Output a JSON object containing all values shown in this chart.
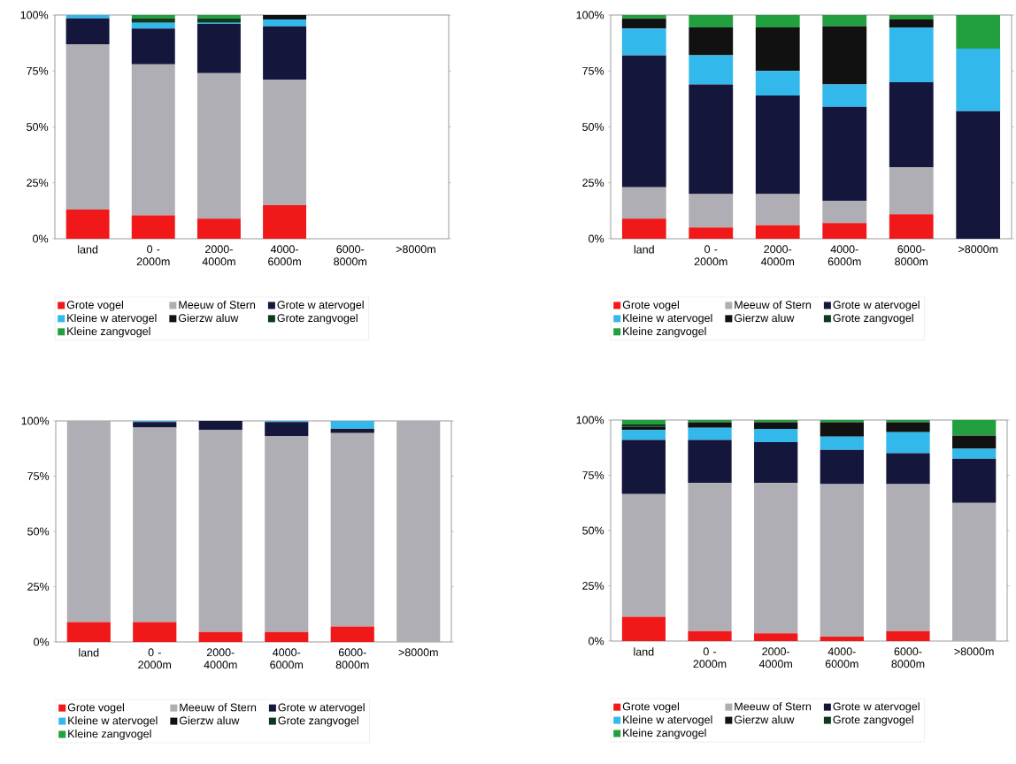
{
  "chart_data": [
    {
      "type": "bar",
      "stacked": true,
      "legend": "bottom",
      "ylim": [
        0,
        100
      ],
      "yticks": [
        {
          "value": 0,
          "label": "0%"
        },
        {
          "value": 25,
          "label": "25%"
        },
        {
          "value": 50,
          "label": "50%"
        },
        {
          "value": 75,
          "label": "75%"
        },
        {
          "value": 100,
          "label": "100%"
        }
      ],
      "categories": [
        "land",
        "0 - 2000m",
        "2000-4000m",
        "4000-6000m",
        "6000-8000m",
        ">8000m"
      ],
      "series": [
        {
          "name": "Grote vogel",
          "color": "#f01818",
          "values": [
            13,
            10.5,
            9,
            15,
            null,
            null
          ]
        },
        {
          "name": "Meeuw  of Stern",
          "color": "#aeaeb4",
          "values": [
            74,
            67.5,
            65,
            56,
            null,
            null
          ]
        },
        {
          "name": "Grote w atervogel",
          "color": "#15163c",
          "values": [
            11.5,
            16,
            22,
            24,
            null,
            null
          ]
        },
        {
          "name": "Kleine w atervogel",
          "color": "#33b8ec",
          "values": [
            1.5,
            2.5,
            0.5,
            3,
            null,
            null
          ]
        },
        {
          "name": "Gierzw aluw",
          "color": "#111111",
          "values": [
            0,
            0,
            0,
            2,
            null,
            null
          ]
        },
        {
          "name": "Grote zangvogel",
          "color": "#0c3a1c",
          "values": [
            0,
            2,
            2,
            0,
            null,
            null
          ]
        },
        {
          "name": "Kleine zangvogel",
          "color": "#22a040",
          "values": [
            0,
            1.5,
            1.5,
            0,
            null,
            null
          ]
        }
      ]
    },
    {
      "type": "bar",
      "stacked": true,
      "legend": "bottom",
      "ylim": [
        0,
        100
      ],
      "yticks": [
        {
          "value": 0,
          "label": "0%"
        },
        {
          "value": 25,
          "label": "25%"
        },
        {
          "value": 50,
          "label": "50%"
        },
        {
          "value": 75,
          "label": "75%"
        },
        {
          "value": 100,
          "label": "100%"
        }
      ],
      "categories": [
        "land",
        "0 - 2000m",
        "2000-4000m",
        "4000-6000m",
        "6000-8000m",
        ">8000m"
      ],
      "series": [
        {
          "name": "Grote vogel",
          "color": "#f01818",
          "values": [
            9,
            5,
            6,
            7,
            11,
            0
          ]
        },
        {
          "name": "Meeuw  of Stern",
          "color": "#aeaeb4",
          "values": [
            14,
            15,
            14,
            10,
            21,
            0
          ]
        },
        {
          "name": "Grote w atervogel",
          "color": "#15163c",
          "values": [
            59,
            49,
            44,
            42,
            38,
            57
          ]
        },
        {
          "name": "Kleine w atervogel",
          "color": "#33b8ec",
          "values": [
            12,
            13,
            11,
            10,
            24.5,
            28
          ]
        },
        {
          "name": "Gierzw aluw",
          "color": "#111111",
          "values": [
            4,
            12.5,
            19.5,
            26,
            3.5,
            0
          ]
        },
        {
          "name": "Grote zangvogel",
          "color": "#0c3a1c",
          "values": [
            0.5,
            0,
            0,
            0,
            0,
            0
          ]
        },
        {
          "name": "Kleine zangvogel",
          "color": "#22a040",
          "values": [
            1.5,
            5.5,
            5.5,
            5,
            2,
            15
          ]
        }
      ]
    },
    {
      "type": "bar",
      "stacked": true,
      "legend": "bottom",
      "ylim": [
        0,
        100
      ],
      "yticks": [
        {
          "value": 0,
          "label": "0%"
        },
        {
          "value": 25,
          "label": "25%"
        },
        {
          "value": 50,
          "label": "50%"
        },
        {
          "value": 75,
          "label": "75%"
        },
        {
          "value": 100,
          "label": "100%"
        }
      ],
      "categories": [
        "land",
        "0 - 2000m",
        "2000-4000m",
        "4000-6000m",
        "6000-8000m",
        ">8000m"
      ],
      "series": [
        {
          "name": "Grote vogel",
          "color": "#f01818",
          "values": [
            9,
            9,
            4.5,
            4.5,
            7,
            0
          ]
        },
        {
          "name": "Meeuw  of Stern",
          "color": "#aeaeb4",
          "values": [
            91,
            88,
            91.5,
            88.5,
            87.5,
            100
          ]
        },
        {
          "name": "Grote w atervogel",
          "color": "#15163c",
          "values": [
            0,
            2.5,
            4,
            6.5,
            2,
            0
          ]
        },
        {
          "name": "Kleine w atervogel",
          "color": "#33b8ec",
          "values": [
            0,
            0.5,
            0,
            0.5,
            3.5,
            0
          ]
        },
        {
          "name": "Gierzw aluw",
          "color": "#111111",
          "values": [
            0,
            0,
            0,
            0,
            0,
            0
          ]
        },
        {
          "name": "Grote zangvogel",
          "color": "#0c3a1c",
          "values": [
            0,
            0,
            0,
            0,
            0,
            0
          ]
        },
        {
          "name": "Kleine zangvogel",
          "color": "#22a040",
          "values": [
            0,
            0,
            0,
            0,
            0,
            0
          ]
        }
      ]
    },
    {
      "type": "bar",
      "stacked": true,
      "legend": "bottom",
      "ylim": [
        0,
        100
      ],
      "yticks": [
        {
          "value": 0,
          "label": "0%"
        },
        {
          "value": 25,
          "label": "25%"
        },
        {
          "value": 50,
          "label": "50%"
        },
        {
          "value": 75,
          "label": "75%"
        },
        {
          "value": 100,
          "label": "100%"
        }
      ],
      "categories": [
        "land",
        "0 - 2000m",
        "2000-4000m",
        "4000-6000m",
        "6000-8000m",
        ">8000m"
      ],
      "series": [
        {
          "name": "Grote vogel",
          "color": "#f01818",
          "values": [
            11,
            4.5,
            3.5,
            2,
            4.5,
            0
          ]
        },
        {
          "name": "Meeuw  of Stern",
          "color": "#aeaeb4",
          "values": [
            55.5,
            67,
            68,
            69,
            66.5,
            62.5
          ]
        },
        {
          "name": "Grote w atervogel",
          "color": "#15163c",
          "values": [
            24.5,
            19.5,
            18.5,
            15.5,
            14,
            20
          ]
        },
        {
          "name": "Kleine w atervogel",
          "color": "#33b8ec",
          "values": [
            4.5,
            5.5,
            6,
            6,
            9.5,
            4.5
          ]
        },
        {
          "name": "Gierzw aluw",
          "color": "#111111",
          "values": [
            1.5,
            2.5,
            3,
            6.5,
            4.5,
            6
          ]
        },
        {
          "name": "Grote zangvogel",
          "color": "#0c3a1c",
          "values": [
            1,
            0,
            0,
            0,
            0,
            0
          ]
        },
        {
          "name": "Kleine zangvogel",
          "color": "#22a040",
          "values": [
            2,
            1,
            1,
            1,
            1,
            7
          ]
        }
      ]
    }
  ]
}
